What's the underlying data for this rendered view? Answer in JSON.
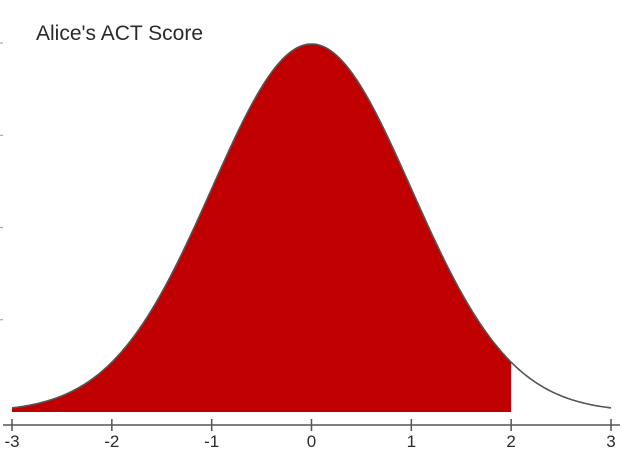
{
  "chart_data": {
    "type": "area",
    "title": "Alice's ACT Score",
    "xlabel": "",
    "ylabel": "",
    "xlim": [
      -3,
      3
    ],
    "x_ticks": [
      -3,
      -2,
      -1,
      0,
      1,
      2,
      3
    ],
    "x_tick_labels": [
      "-3",
      "-2",
      "-1",
      "0",
      "1",
      "2",
      "3"
    ],
    "curve": "standard normal density",
    "shaded_region": {
      "from": -3,
      "to": 2
    },
    "shaded_fraction": 0.977,
    "grid": false,
    "legend": "none"
  },
  "colors": {
    "fill": "#c00000",
    "curve": "#555555",
    "axis": "#555555",
    "text": "#2b2b2b"
  }
}
